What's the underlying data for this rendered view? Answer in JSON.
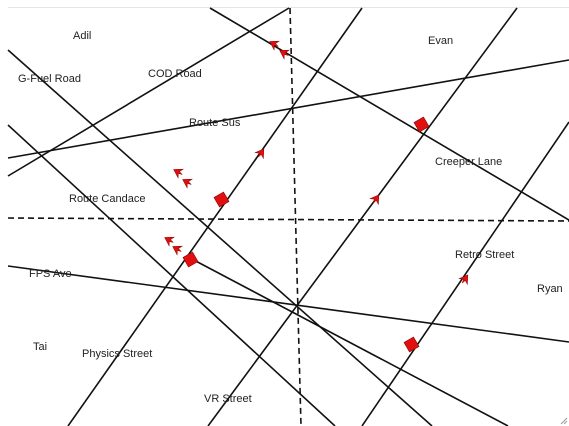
{
  "map": {
    "colors": {
      "background": "#ffffff",
      "road": "#111111",
      "marker": "#e01010",
      "marker_stroke": "#8a0000",
      "label": "#222222"
    },
    "labels": {
      "adil": "Adil",
      "evan": "Evan",
      "g_fuel_road": "G-Fuel Road",
      "cod_road": "COD Road",
      "route_sus": "Route Sus",
      "creeper_lane": "Creeper Lane",
      "route_candace": "Route Candace",
      "retro_street": "Retro Street",
      "fps_ave": "FPS Ave",
      "ryan": "Ryan",
      "tai": "Tai",
      "physics_street": "Physics Street",
      "vr_street": "VR Street"
    },
    "icons": {
      "direction_marker": "arrow-icon",
      "stop_marker": "red-square-icon",
      "resize_grip": "resize-grip-icon"
    }
  }
}
